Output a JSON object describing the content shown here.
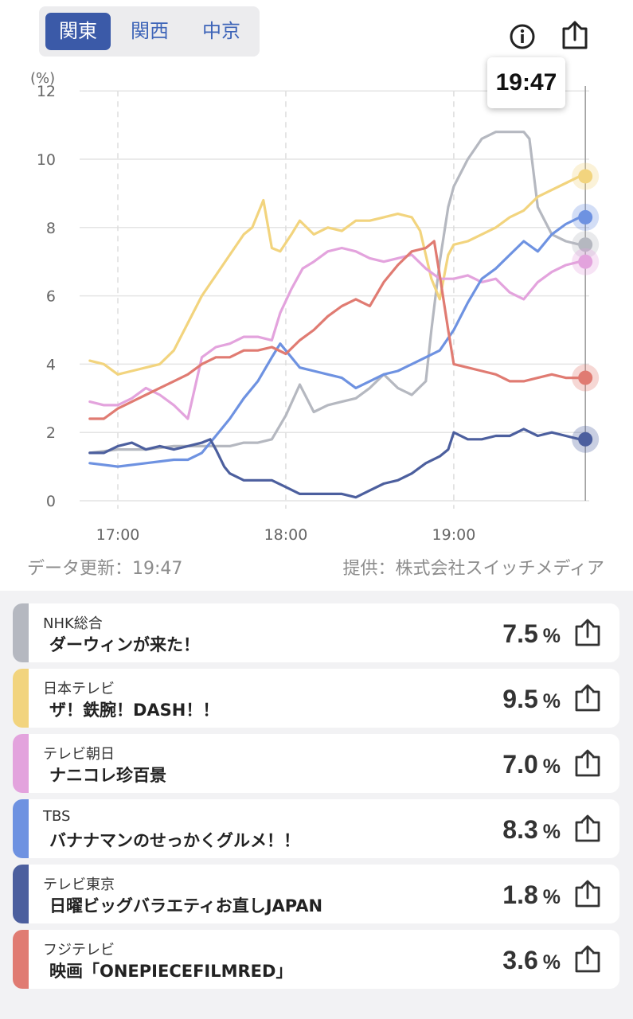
{
  "tabs": [
    {
      "label": "関東",
      "active": true
    },
    {
      "label": "関西",
      "active": false
    },
    {
      "label": "中京",
      "active": false
    }
  ],
  "icons": {
    "info": "info-icon",
    "share": "share-icon"
  },
  "tooltip_time": "19:47",
  "update_text": "データ更新：19:47",
  "provider_text": "提供：株式会社スイッチメディア",
  "chart_data": {
    "type": "line",
    "unit_label": "(%)",
    "ylim": [
      0,
      12
    ],
    "yticks": [
      "0",
      "2",
      "4",
      "6",
      "8",
      "10",
      "12"
    ],
    "xticks": [
      "17:00",
      "18:00",
      "19:00"
    ],
    "x_range_minutes": [
      -10,
      167
    ],
    "grid": true,
    "series": [
      {
        "name": "NHK総合",
        "color": "#b5b8c0",
        "points": [
          [
            -10,
            1.4
          ],
          [
            0,
            1.5
          ],
          [
            10,
            1.5
          ],
          [
            20,
            1.6
          ],
          [
            30,
            1.6
          ],
          [
            35,
            1.6
          ],
          [
            40,
            1.6
          ],
          [
            45,
            1.7
          ],
          [
            50,
            1.7
          ],
          [
            55,
            1.8
          ],
          [
            60,
            2.5
          ],
          [
            65,
            3.4
          ],
          [
            70,
            2.6
          ],
          [
            75,
            2.8
          ],
          [
            80,
            2.9
          ],
          [
            85,
            3.0
          ],
          [
            90,
            3.3
          ],
          [
            95,
            3.7
          ],
          [
            100,
            3.3
          ],
          [
            105,
            3.1
          ],
          [
            110,
            3.5
          ],
          [
            112,
            5.0
          ],
          [
            115,
            7.0
          ],
          [
            118,
            8.6
          ],
          [
            120,
            9.2
          ],
          [
            125,
            10.0
          ],
          [
            130,
            10.6
          ],
          [
            135,
            10.8
          ],
          [
            140,
            10.8
          ],
          [
            145,
            10.8
          ],
          [
            147,
            10.6
          ],
          [
            150,
            8.6
          ],
          [
            155,
            7.8
          ],
          [
            160,
            7.6
          ],
          [
            165,
            7.5
          ]
        ]
      },
      {
        "name": "日本テレビ",
        "color": "#f2d47e",
        "points": [
          [
            -10,
            4.1
          ],
          [
            -5,
            4.0
          ],
          [
            0,
            3.7
          ],
          [
            5,
            3.8
          ],
          [
            10,
            3.9
          ],
          [
            15,
            4.0
          ],
          [
            20,
            4.4
          ],
          [
            25,
            5.2
          ],
          [
            30,
            6.0
          ],
          [
            35,
            6.6
          ],
          [
            40,
            7.2
          ],
          [
            45,
            7.8
          ],
          [
            48,
            8.0
          ],
          [
            52,
            8.8
          ],
          [
            55,
            7.4
          ],
          [
            58,
            7.3
          ],
          [
            62,
            7.8
          ],
          [
            65,
            8.2
          ],
          [
            70,
            7.8
          ],
          [
            75,
            8.0
          ],
          [
            80,
            7.9
          ],
          [
            85,
            8.2
          ],
          [
            90,
            8.2
          ],
          [
            95,
            8.3
          ],
          [
            100,
            8.4
          ],
          [
            105,
            8.3
          ],
          [
            108,
            7.9
          ],
          [
            112,
            6.5
          ],
          [
            115,
            5.9
          ],
          [
            118,
            7.2
          ],
          [
            120,
            7.5
          ],
          [
            125,
            7.6
          ],
          [
            130,
            7.8
          ],
          [
            135,
            8.0
          ],
          [
            140,
            8.3
          ],
          [
            145,
            8.5
          ],
          [
            150,
            8.9
          ],
          [
            155,
            9.1
          ],
          [
            160,
            9.3
          ],
          [
            165,
            9.5
          ]
        ]
      },
      {
        "name": "テレビ朝日",
        "color": "#e3a3dd",
        "points": [
          [
            -10,
            2.9
          ],
          [
            -5,
            2.8
          ],
          [
            0,
            2.8
          ],
          [
            5,
            3.0
          ],
          [
            10,
            3.3
          ],
          [
            15,
            3.1
          ],
          [
            20,
            2.8
          ],
          [
            25,
            2.4
          ],
          [
            30,
            4.2
          ],
          [
            35,
            4.5
          ],
          [
            40,
            4.6
          ],
          [
            45,
            4.8
          ],
          [
            50,
            4.8
          ],
          [
            55,
            4.7
          ],
          [
            58,
            5.5
          ],
          [
            62,
            6.2
          ],
          [
            66,
            6.8
          ],
          [
            70,
            7.0
          ],
          [
            75,
            7.3
          ],
          [
            80,
            7.4
          ],
          [
            85,
            7.3
          ],
          [
            90,
            7.1
          ],
          [
            95,
            7.0
          ],
          [
            100,
            7.1
          ],
          [
            105,
            7.2
          ],
          [
            110,
            6.8
          ],
          [
            115,
            6.5
          ],
          [
            120,
            6.5
          ],
          [
            125,
            6.6
          ],
          [
            130,
            6.4
          ],
          [
            135,
            6.5
          ],
          [
            140,
            6.1
          ],
          [
            145,
            5.9
          ],
          [
            150,
            6.4
          ],
          [
            155,
            6.7
          ],
          [
            160,
            6.9
          ],
          [
            165,
            7.0
          ]
        ]
      },
      {
        "name": "TBS",
        "color": "#6e92e1",
        "points": [
          [
            -10,
            1.1
          ],
          [
            0,
            1.0
          ],
          [
            10,
            1.1
          ],
          [
            20,
            1.2
          ],
          [
            25,
            1.2
          ],
          [
            30,
            1.4
          ],
          [
            35,
            1.9
          ],
          [
            40,
            2.4
          ],
          [
            45,
            3.0
          ],
          [
            50,
            3.5
          ],
          [
            55,
            4.2
          ],
          [
            58,
            4.6
          ],
          [
            62,
            4.2
          ],
          [
            65,
            3.9
          ],
          [
            70,
            3.8
          ],
          [
            75,
            3.7
          ],
          [
            80,
            3.6
          ],
          [
            85,
            3.3
          ],
          [
            90,
            3.5
          ],
          [
            95,
            3.7
          ],
          [
            100,
            3.8
          ],
          [
            105,
            4.0
          ],
          [
            110,
            4.2
          ],
          [
            115,
            4.4
          ],
          [
            120,
            5.0
          ],
          [
            125,
            5.8
          ],
          [
            130,
            6.5
          ],
          [
            135,
            6.8
          ],
          [
            140,
            7.2
          ],
          [
            145,
            7.6
          ],
          [
            150,
            7.3
          ],
          [
            155,
            7.8
          ],
          [
            160,
            8.1
          ],
          [
            165,
            8.3
          ]
        ]
      },
      {
        "name": "テレビ東京",
        "color": "#4c5f9e",
        "points": [
          [
            -10,
            1.4
          ],
          [
            -5,
            1.4
          ],
          [
            0,
            1.6
          ],
          [
            5,
            1.7
          ],
          [
            10,
            1.5
          ],
          [
            15,
            1.6
          ],
          [
            20,
            1.5
          ],
          [
            25,
            1.6
          ],
          [
            30,
            1.7
          ],
          [
            33,
            1.8
          ],
          [
            35,
            1.5
          ],
          [
            38,
            1.0
          ],
          [
            40,
            0.8
          ],
          [
            45,
            0.6
          ],
          [
            50,
            0.6
          ],
          [
            55,
            0.6
          ],
          [
            60,
            0.4
          ],
          [
            65,
            0.2
          ],
          [
            70,
            0.2
          ],
          [
            75,
            0.2
          ],
          [
            80,
            0.2
          ],
          [
            85,
            0.1
          ],
          [
            90,
            0.3
          ],
          [
            95,
            0.5
          ],
          [
            100,
            0.6
          ],
          [
            105,
            0.8
          ],
          [
            110,
            1.1
          ],
          [
            115,
            1.3
          ],
          [
            118,
            1.5
          ],
          [
            120,
            2.0
          ],
          [
            125,
            1.8
          ],
          [
            130,
            1.8
          ],
          [
            135,
            1.9
          ],
          [
            140,
            1.9
          ],
          [
            145,
            2.1
          ],
          [
            150,
            1.9
          ],
          [
            155,
            2.0
          ],
          [
            160,
            1.9
          ],
          [
            165,
            1.8
          ]
        ]
      },
      {
        "name": "フジテレビ",
        "color": "#e07b72",
        "points": [
          [
            -10,
            2.4
          ],
          [
            -5,
            2.4
          ],
          [
            0,
            2.7
          ],
          [
            5,
            2.9
          ],
          [
            10,
            3.1
          ],
          [
            15,
            3.3
          ],
          [
            20,
            3.5
          ],
          [
            25,
            3.7
          ],
          [
            30,
            4.0
          ],
          [
            35,
            4.2
          ],
          [
            40,
            4.2
          ],
          [
            45,
            4.4
          ],
          [
            50,
            4.4
          ],
          [
            55,
            4.5
          ],
          [
            60,
            4.3
          ],
          [
            65,
            4.7
          ],
          [
            70,
            5.0
          ],
          [
            75,
            5.4
          ],
          [
            80,
            5.7
          ],
          [
            85,
            5.9
          ],
          [
            90,
            5.7
          ],
          [
            95,
            6.4
          ],
          [
            100,
            6.9
          ],
          [
            105,
            7.3
          ],
          [
            110,
            7.4
          ],
          [
            113,
            7.6
          ],
          [
            115,
            6.6
          ],
          [
            118,
            5.0
          ],
          [
            120,
            4.0
          ],
          [
            125,
            3.9
          ],
          [
            130,
            3.8
          ],
          [
            135,
            3.7
          ],
          [
            140,
            3.5
          ],
          [
            145,
            3.5
          ],
          [
            150,
            3.6
          ],
          [
            155,
            3.7
          ],
          [
            160,
            3.6
          ],
          [
            165,
            3.6
          ]
        ]
      }
    ]
  },
  "programs": [
    {
      "station": "NHK総合",
      "title": "ダーウィンが来た！",
      "value": "7.5",
      "unit": "%",
      "color": "#b5b8c0"
    },
    {
      "station": "日本テレビ",
      "title": "ザ！鉄腕！DASH！！",
      "value": "9.5",
      "unit": "%",
      "color": "#f2d47e"
    },
    {
      "station": "テレビ朝日",
      "title": "ナニコレ珍百景",
      "value": "7.0",
      "unit": "%",
      "color": "#e3a3dd"
    },
    {
      "station": "TBS",
      "title": "バナナマンのせっかくグルメ！！",
      "value": "8.3",
      "unit": "%",
      "color": "#6e92e1"
    },
    {
      "station": "テレビ東京",
      "title": "日曜ビッグバラエティお直しJAPAN",
      "value": "1.8",
      "unit": "%",
      "color": "#4c5f9e"
    },
    {
      "station": "フジテレビ",
      "title": "映画「ONEPIECEFILMRED」",
      "value": "3.6",
      "unit": "%",
      "color": "#e07b72"
    }
  ]
}
